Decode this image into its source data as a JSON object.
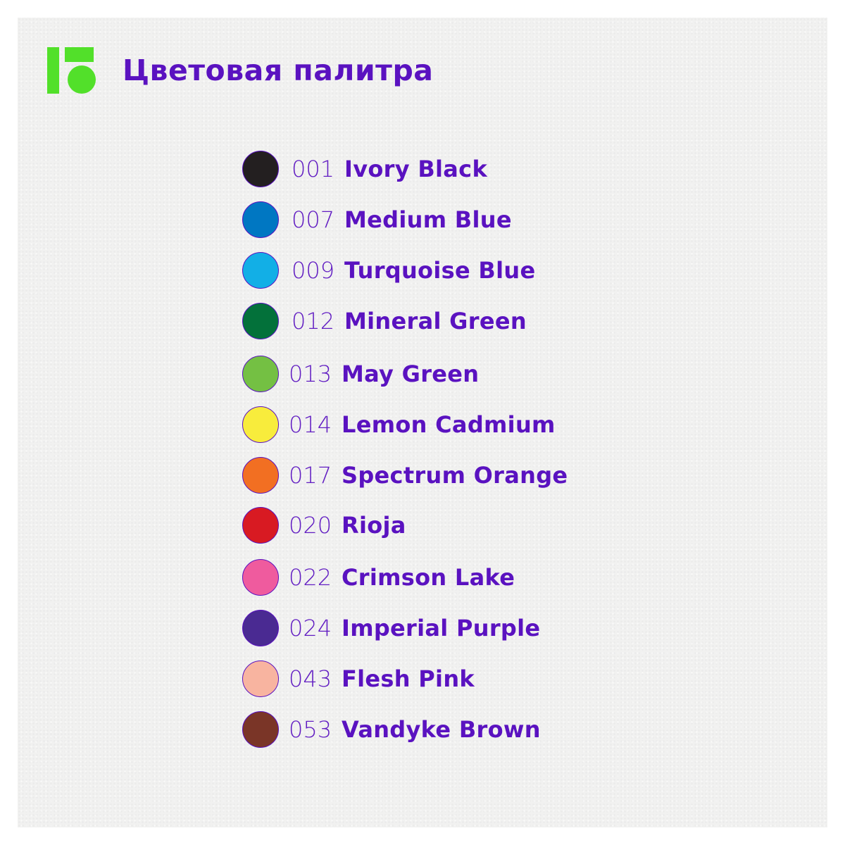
{
  "title": "Цветовая палитра",
  "colors": {
    "accent_text": "#5a12c0",
    "logo": "#52e02a"
  },
  "palette": [
    {
      "code": "001",
      "name": "Ivory Black",
      "color": "#231f20"
    },
    {
      "code": "007",
      "name": "Medium Blue",
      "color": "#0077c2"
    },
    {
      "code": "009",
      "name": "Turquoise Blue",
      "color": "#12afe6"
    },
    {
      "code": "012",
      "name": "Mineral Green",
      "color": "#03713a"
    },
    {
      "code": "013",
      "name": "May Green",
      "color": "#74c043"
    },
    {
      "code": "014",
      "name": "Lemon Cadmium",
      "color": "#f8ec3c"
    },
    {
      "code": "017",
      "name": "Spectrum Orange",
      "color": "#f26f22"
    },
    {
      "code": "020",
      "name": "Rioja",
      "color": "#d81a22"
    },
    {
      "code": "022",
      "name": "Crimson Lake",
      "color": "#ef5b9e"
    },
    {
      "code": "024",
      "name": "Imperial Purple",
      "color": "#4a2a92"
    },
    {
      "code": "043",
      "name": "Flesh Pink",
      "color": "#f8b4a0"
    },
    {
      "code": "053",
      "name": "Vandyke Brown",
      "color": "#7a3527"
    }
  ]
}
